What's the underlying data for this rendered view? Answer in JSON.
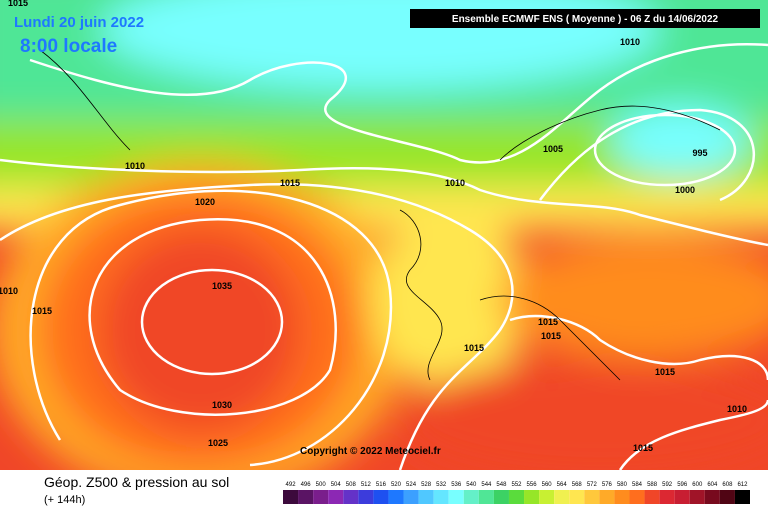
{
  "header": {
    "date": "Lundi 20 juin 2022",
    "time": "8:00 locale",
    "model": "Ensemble ECMWF ENS  ( Moyenne )  -  06 Z du 14/06/2022"
  },
  "map": {
    "isobar_labels": [
      1015,
      1010,
      1010,
      1015,
      1010,
      1005,
      995,
      1000,
      1020,
      1010,
      1015,
      1035,
      1015,
      1015,
      1015,
      1015,
      1030,
      1010,
      1025,
      1015
    ],
    "copyright": "Copyright © 2022 Meteociel.fr"
  },
  "legend": {
    "title": "Géop. Z500 & pression au sol",
    "subtitle": "(+ 144h)",
    "scale": [
      492,
      496,
      500,
      504,
      508,
      512,
      516,
      520,
      524,
      528,
      532,
      536,
      540,
      544,
      548,
      552,
      556,
      560,
      564,
      568,
      572,
      576,
      580,
      584,
      588,
      592,
      596,
      600,
      604,
      608,
      612
    ],
    "colors": [
      "#3c0a3c",
      "#5a1464",
      "#7a1e8c",
      "#8c28b4",
      "#6432c8",
      "#3c3cdc",
      "#1e50f0",
      "#1e78ff",
      "#3ca0ff",
      "#50c8ff",
      "#64e6ff",
      "#78ffff",
      "#64f0c8",
      "#50e696",
      "#3cd264",
      "#5adc3c",
      "#96e628",
      "#c8f032",
      "#f0f050",
      "#ffe650",
      "#ffc83c",
      "#ffaa28",
      "#ff8c1e",
      "#ff6e1e",
      "#f04628",
      "#dc2832",
      "#c81e32",
      "#a01428",
      "#780a1e",
      "#500514",
      "#000000"
    ]
  }
}
